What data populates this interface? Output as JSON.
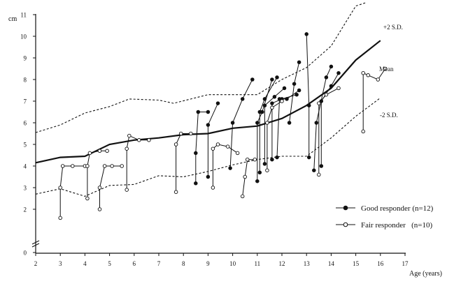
{
  "chart_data": {
    "type": "line",
    "y_unit": "cm",
    "xlabel": "Age (years)",
    "ylabel": "",
    "xlim": [
      2,
      17
    ],
    "ylim": [
      0,
      11.5
    ],
    "x_ticks": [
      "2",
      "3",
      "4",
      "5",
      "6",
      "7",
      "8",
      "9",
      "10",
      "11",
      "12",
      "13",
      "14",
      "15",
      "16",
      "17"
    ],
    "y_ticks": [
      "0",
      "2",
      "3",
      "4",
      "5",
      "6",
      "7",
      "8",
      "9",
      "10",
      "11"
    ],
    "reference_curves": [
      {
        "name": "+2 S.D.",
        "style": "dashed",
        "points": [
          [
            2,
            5.55
          ],
          [
            3,
            5.9
          ],
          [
            4,
            6.45
          ],
          [
            5,
            6.75
          ],
          [
            5.8,
            7.1
          ],
          [
            7,
            7.05
          ],
          [
            7.6,
            6.9
          ],
          [
            9,
            7.3
          ],
          [
            10,
            7.3
          ],
          [
            11,
            7.3
          ],
          [
            12,
            8.0
          ],
          [
            13,
            8.55
          ],
          [
            14,
            9.55
          ],
          [
            15,
            11.4
          ],
          [
            15.4,
            11.55
          ]
        ]
      },
      {
        "name": "Mean",
        "style": "solid",
        "points": [
          [
            2,
            4.15
          ],
          [
            3,
            4.4
          ],
          [
            4,
            4.45
          ],
          [
            5,
            5.0
          ],
          [
            6,
            5.2
          ],
          [
            7,
            5.3
          ],
          [
            8,
            5.45
          ],
          [
            9,
            5.5
          ],
          [
            10,
            5.75
          ],
          [
            11,
            5.85
          ],
          [
            12,
            6.2
          ],
          [
            13,
            6.8
          ],
          [
            14,
            7.6
          ],
          [
            15,
            8.9
          ],
          [
            16,
            9.8
          ]
        ]
      },
      {
        "name": "-2 S.D.",
        "style": "dashed",
        "points": [
          [
            2,
            2.7
          ],
          [
            3,
            2.95
          ],
          [
            4,
            2.6
          ],
          [
            5,
            3.1
          ],
          [
            6,
            3.15
          ],
          [
            7,
            3.55
          ],
          [
            8,
            3.5
          ],
          [
            9,
            3.75
          ],
          [
            10,
            4.05
          ],
          [
            11,
            4.3
          ],
          [
            12,
            4.45
          ],
          [
            13,
            4.45
          ],
          [
            14,
            5.3
          ],
          [
            15,
            6.3
          ],
          [
            16,
            7.15
          ]
        ]
      }
    ],
    "legend": {
      "placement": "bottom-right",
      "entries": [
        "Good responder (n=12)",
        "Fair responder   (n=10)"
      ]
    },
    "series": [
      {
        "name": "Good responder (n=12)",
        "marker": "filled",
        "segments": [
          [
            [
              8.5,
              3.2
            ],
            [
              8.5,
              4.6
            ],
            [
              8.6,
              6.5
            ],
            [
              9.0,
              6.5
            ]
          ],
          [
            [
              9.0,
              3.5
            ],
            [
              9.0,
              5.9
            ],
            [
              9.4,
              6.9
            ]
          ],
          [
            [
              9.9,
              3.9
            ],
            [
              10.0,
              6.0
            ],
            [
              10.4,
              7.1
            ],
            [
              10.8,
              8.0
            ]
          ],
          [
            [
              11.0,
              3.3
            ],
            [
              11.0,
              6.0
            ],
            [
              11.2,
              6.5
            ],
            [
              11.6,
              8.0
            ]
          ],
          [
            [
              11.1,
              3.7
            ],
            [
              11.1,
              6.5
            ],
            [
              11.3,
              7.1
            ],
            [
              11.8,
              8.1
            ]
          ],
          [
            [
              11.3,
              4.1
            ],
            [
              11.3,
              6.8
            ],
            [
              11.7,
              7.2
            ],
            [
              12.1,
              7.6
            ]
          ],
          [
            [
              11.6,
              4.3
            ],
            [
              11.6,
              6.9
            ],
            [
              12.0,
              7.1
            ],
            [
              12.6,
              7.3
            ]
          ],
          [
            [
              11.8,
              4.4
            ],
            [
              11.9,
              7.1
            ],
            [
              12.2,
              7.1
            ],
            [
              12.7,
              7.5
            ]
          ],
          [
            [
              12.3,
              6.0
            ],
            [
              12.5,
              7.8
            ],
            [
              12.7,
              8.8
            ]
          ],
          [
            [
              13.1,
              4.4
            ],
            [
              13.1,
              6.8
            ],
            [
              13.0,
              10.1
            ]
          ],
          [
            [
              13.3,
              3.8
            ],
            [
              13.4,
              6.0
            ],
            [
              13.8,
              8.1
            ],
            [
              14.0,
              8.6
            ]
          ],
          [
            [
              13.6,
              4.0
            ],
            [
              13.6,
              7.0
            ],
            [
              14.0,
              7.7
            ],
            [
              14.3,
              8.3
            ]
          ]
        ]
      },
      {
        "name": "Fair responder   (n=10)",
        "marker": "open",
        "segments": [
          [
            [
              3.0,
              1.6
            ],
            [
              3.0,
              3.0
            ],
            [
              3.1,
              4.0
            ],
            [
              3.5,
              4.0
            ],
            [
              4.0,
              4.0
            ]
          ],
          [
            [
              4.1,
              2.5
            ],
            [
              4.1,
              4.0
            ],
            [
              4.2,
              4.6
            ],
            [
              4.6,
              4.7
            ],
            [
              4.9,
              4.7
            ]
          ],
          [
            [
              4.6,
              2.0
            ],
            [
              4.6,
              3.0
            ],
            [
              4.8,
              4.0
            ],
            [
              5.1,
              4.0
            ],
            [
              5.5,
              4.0
            ]
          ],
          [
            [
              5.7,
              2.9
            ],
            [
              5.7,
              4.8
            ],
            [
              5.8,
              5.4
            ],
            [
              6.2,
              5.2
            ],
            [
              6.6,
              5.2
            ]
          ],
          [
            [
              7.7,
              2.8
            ],
            [
              7.7,
              5.0
            ],
            [
              7.9,
              5.5
            ],
            [
              8.3,
              5.5
            ]
          ],
          [
            [
              9.2,
              3.0
            ],
            [
              9.2,
              4.8
            ],
            [
              9.4,
              5.0
            ],
            [
              9.8,
              4.9
            ],
            [
              10.2,
              4.6
            ]
          ],
          [
            [
              10.4,
              2.6
            ],
            [
              10.5,
              3.5
            ],
            [
              10.6,
              4.3
            ],
            [
              10.9,
              4.3
            ]
          ],
          [
            [
              11.4,
              3.8
            ],
            [
              11.4,
              6.0
            ],
            [
              11.6,
              6.7
            ],
            [
              12.0,
              7.0
            ]
          ],
          [
            [
              13.5,
              3.6
            ],
            [
              13.5,
              6.9
            ],
            [
              13.8,
              7.3
            ],
            [
              14.3,
              7.6
            ]
          ],
          [
            [
              15.3,
              5.6
            ],
            [
              15.3,
              8.3
            ],
            [
              15.5,
              8.2
            ],
            [
              15.9,
              8.0
            ],
            [
              16.2,
              8.5
            ]
          ]
        ]
      }
    ]
  }
}
